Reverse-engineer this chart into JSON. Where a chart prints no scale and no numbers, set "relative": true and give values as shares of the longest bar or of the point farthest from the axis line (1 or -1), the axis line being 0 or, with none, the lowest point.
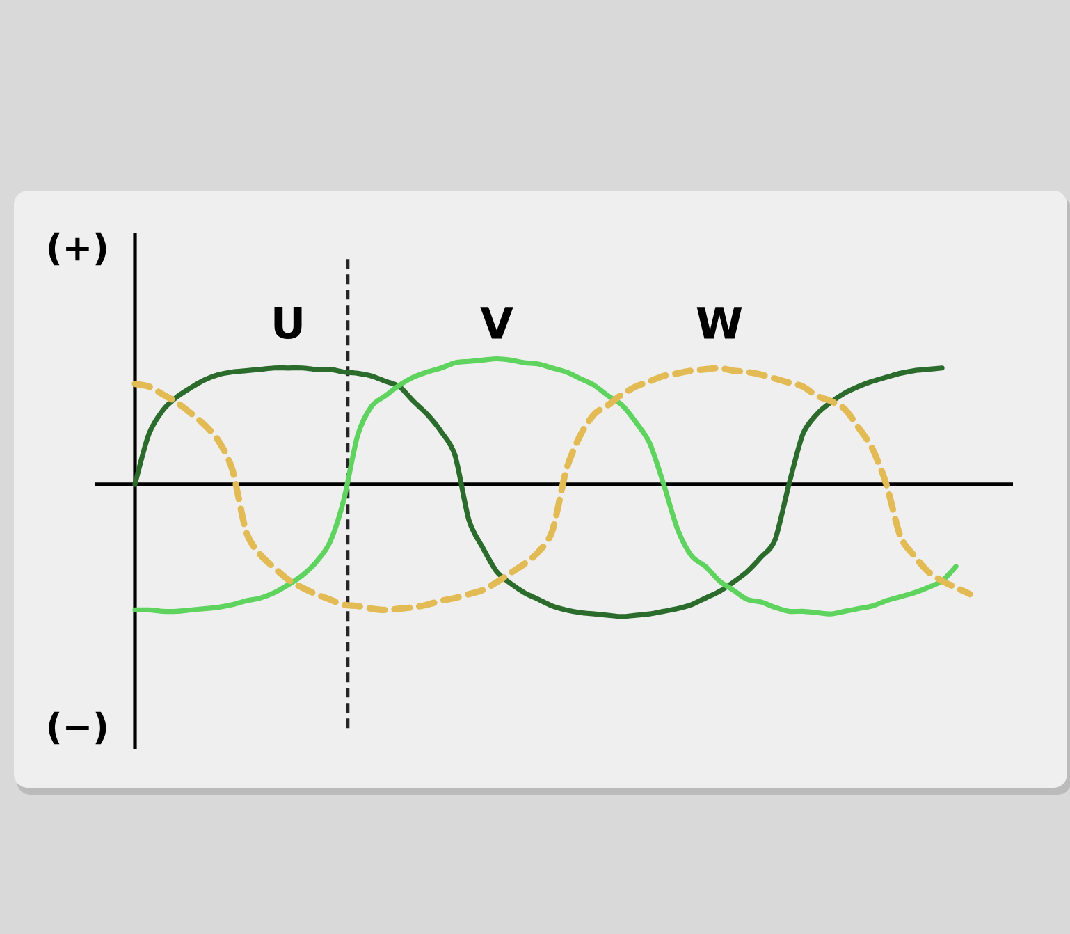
{
  "chart_data": {
    "type": "line",
    "relative": true,
    "categories": [
      null,
      null,
      null,
      null,
      null,
      null,
      null,
      null,
      null,
      null,
      null,
      null,
      null,
      null,
      null,
      null,
      null,
      null,
      null,
      null,
      null,
      null,
      null,
      null,
      null,
      null,
      null,
      null,
      null,
      null,
      null,
      null,
      null,
      null,
      null,
      null,
      null,
      null,
      null,
      null,
      null,
      null,
      null,
      null,
      null,
      null,
      null,
      null,
      null,
      null,
      null,
      null,
      null,
      null,
      null,
      null,
      null,
      null,
      null,
      null,
      null
    ],
    "series": [
      {
        "name": "U",
        "color": "#2b6b2b",
        "line_style": "solid",
        "values": [
          0,
          0.38,
          0.56,
          0.66,
          0.73,
          0.79,
          0.83,
          0.85,
          0.86,
          0.87,
          0.88,
          0.88,
          0.88,
          0.87,
          0.87,
          0.85,
          0.84,
          0.82,
          0.78,
          0.74,
          0.63,
          0.53,
          0.4,
          0.22,
          -0.27,
          -0.48,
          -0.66,
          -0.75,
          -0.82,
          -0.87,
          -0.92,
          -0.95,
          -0.97,
          -0.98,
          -0.99,
          -1,
          -0.99,
          -0.98,
          -0.96,
          -0.94,
          -0.91,
          -0.86,
          -0.81,
          -0.74,
          -0.66,
          -0.55,
          -0.42,
          0,
          0.38,
          0.53,
          0.62,
          0.69,
          0.74,
          0.78,
          0.81,
          0.84,
          0.86,
          0.87,
          0.88,
          null,
          null
        ]
      },
      {
        "name": "V",
        "color": "#5ed35e",
        "line_style": "solid",
        "values": [
          -0.95,
          -0.95,
          -0.96,
          -0.96,
          -0.95,
          -0.94,
          -0.93,
          -0.91,
          -0.88,
          -0.86,
          -0.82,
          -0.76,
          -0.69,
          -0.59,
          -0.44,
          -0.12,
          0.37,
          0.59,
          0.67,
          0.75,
          0.81,
          0.85,
          0.88,
          0.92,
          0.93,
          0.94,
          0.95,
          0.94,
          0.92,
          0.91,
          0.88,
          0.85,
          0.8,
          0.75,
          0.67,
          0.6,
          0.47,
          0.31,
          0,
          -0.34,
          -0.54,
          -0.62,
          -0.73,
          -0.8,
          -0.87,
          -0.89,
          -0.93,
          -0.96,
          -0.96,
          -0.97,
          -0.98,
          -0.96,
          -0.94,
          -0.92,
          -0.88,
          -0.85,
          -0.82,
          -0.78,
          -0.73,
          -0.62,
          null
        ]
      },
      {
        "name": "W",
        "color": "#e3bb55",
        "line_style": "dashed",
        "values": [
          0.76,
          0.74,
          0.68,
          0.62,
          0.54,
          0.45,
          0.33,
          0.11,
          -0.36,
          -0.53,
          -0.63,
          -0.72,
          -0.78,
          -0.83,
          -0.87,
          -0.91,
          -0.92,
          -0.94,
          -0.95,
          -0.94,
          -0.93,
          -0.91,
          -0.88,
          -0.86,
          -0.83,
          -0.8,
          -0.74,
          -0.67,
          -0.6,
          -0.51,
          -0.35,
          0.11,
          0.37,
          0.53,
          0.6,
          0.68,
          0.74,
          0.78,
          0.82,
          0.84,
          0.86,
          0.87,
          0.88,
          0.86,
          0.85,
          0.83,
          0.8,
          0.77,
          0.74,
          0.67,
          0.63,
          0.57,
          0.43,
          0.27,
          0,
          -0.39,
          -0.54,
          -0.66,
          -0.73,
          -0.78,
          -0.83
        ]
      }
    ],
    "annotations": [
      "(+)",
      "(−)"
    ]
  }
}
